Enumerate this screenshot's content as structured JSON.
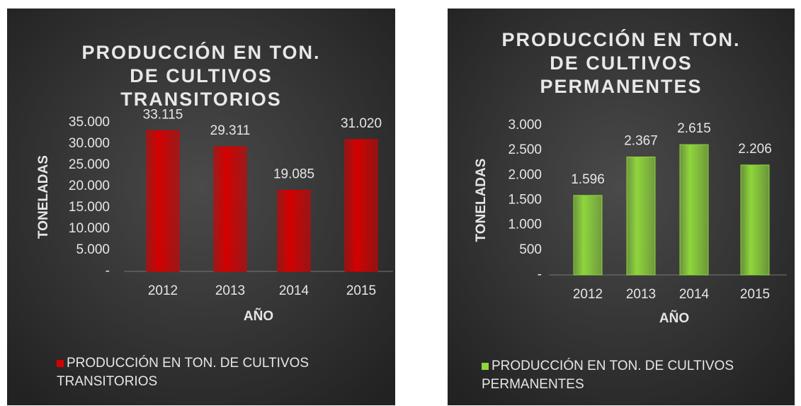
{
  "chart_data": [
    {
      "type": "bar",
      "title": "PRODUCCIÓN EN TON. DE CULTIVOS TRANSITORIOS",
      "xlabel": "AÑO",
      "ylabel": "TONELADAS",
      "categories": [
        "2012",
        "2013",
        "2014",
        "2015"
      ],
      "series": [
        {
          "name": "PRODUCCIÓN EN TON. DE CULTIVOS TRANSITORIOS",
          "color": "#d40000",
          "values": [
            33115,
            29311,
            19085,
            31020
          ],
          "value_labels": [
            "33.115",
            "29.311",
            "19.085",
            "31.020"
          ]
        }
      ],
      "ylim": [
        0,
        35000
      ],
      "yticks": [
        {
          "value": 0,
          "label": "-"
        },
        {
          "value": 5000,
          "label": "5.000"
        },
        {
          "value": 10000,
          "label": "10.000"
        },
        {
          "value": 15000,
          "label": "15.000"
        },
        {
          "value": 20000,
          "label": "20.000"
        },
        {
          "value": 25000,
          "label": "25.000"
        },
        {
          "value": 30000,
          "label": "30.000"
        },
        {
          "value": 35000,
          "label": "35.000"
        }
      ]
    },
    {
      "type": "bar",
      "title": "PRODUCCIÓN EN TON. DE CULTIVOS PERMANENTES",
      "xlabel": "AÑO",
      "ylabel": "TONELADAS",
      "categories": [
        "2012",
        "2013",
        "2014",
        "2015"
      ],
      "series": [
        {
          "name": "PRODUCCIÓN EN TON. DE CULTIVOS PERMANENTES",
          "color": "#8fd63c",
          "values": [
            1596,
            2367,
            2615,
            2206
          ],
          "value_labels": [
            "1.596",
            "2.367",
            "2.615",
            "2.206"
          ]
        }
      ],
      "ylim": [
        0,
        3000
      ],
      "yticks": [
        {
          "value": 0,
          "label": "-"
        },
        {
          "value": 500,
          "label": "500"
        },
        {
          "value": 1000,
          "label": "1.000"
        },
        {
          "value": 1500,
          "label": "1.500"
        },
        {
          "value": 2000,
          "label": "2.000"
        },
        {
          "value": 2500,
          "label": "2.500"
        },
        {
          "value": 3000,
          "label": "3.000"
        }
      ]
    }
  ]
}
